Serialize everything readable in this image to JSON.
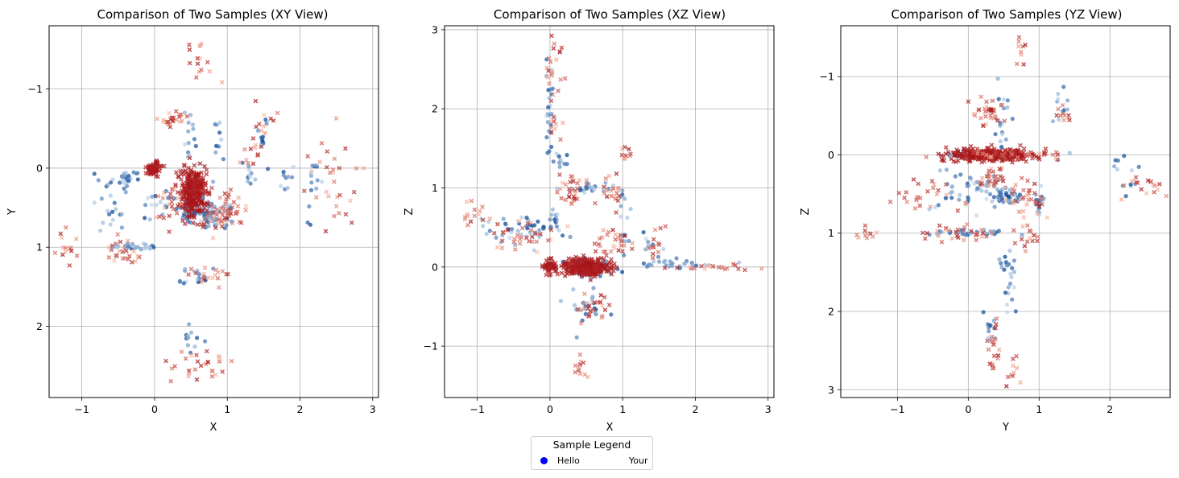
{
  "chart_data": [
    {
      "type": "scatter",
      "title": "Comparison of Two Samples (XY View)",
      "xlabel": "X",
      "ylabel": "Y",
      "xlim": [
        -1.45,
        3.08
      ],
      "ylim": [
        2.9,
        -1.8
      ],
      "y_inverted": true,
      "xticks": [
        -1,
        0,
        1,
        2,
        3
      ],
      "yticks": [
        -1,
        0,
        1,
        2
      ],
      "grid": true,
      "series": [
        {
          "name": "Hello",
          "color_map": "Blues",
          "marker": "o",
          "clusters": [
            {
              "cx": 0.5,
              "cy": 0.55,
              "sx": 0.06,
              "sy": 0.06,
              "n": 60
            },
            {
              "cx": 0.75,
              "cy": 0.6,
              "sx": 0.07,
              "sy": 0.08,
              "n": 45
            },
            {
              "cx": -0.4,
              "cy": 0.15,
              "sx": 0.12,
              "sy": 0.06,
              "n": 25
            },
            {
              "cx": -0.6,
              "cy": 0.5,
              "sx": 0.12,
              "sy": 0.15,
              "n": 20
            },
            {
              "cx": -0.3,
              "cy": 1.0,
              "sx": 0.2,
              "sy": 0.02,
              "n": 30
            },
            {
              "cx": 0.5,
              "cy": -0.3,
              "sx": 0.05,
              "sy": 0.25,
              "n": 15
            },
            {
              "cx": 0.9,
              "cy": -0.35,
              "sx": 0.05,
              "sy": 0.2,
              "n": 10
            },
            {
              "cx": 1.45,
              "cy": -0.4,
              "sx": 0.06,
              "sy": 0.1,
              "n": 12
            },
            {
              "cx": 1.3,
              "cy": 0.05,
              "sx": 0.05,
              "sy": 0.12,
              "n": 10
            },
            {
              "cx": 2.2,
              "cy": 0.15,
              "sx": 0.08,
              "sy": 0.25,
              "n": 14
            },
            {
              "cx": 1.8,
              "cy": 0.1,
              "sx": 0.1,
              "sy": 0.1,
              "n": 10
            },
            {
              "cx": 0.6,
              "cy": 1.35,
              "sx": 0.12,
              "sy": 0.06,
              "n": 18
            },
            {
              "cx": 0.5,
              "cy": 2.15,
              "sx": 0.07,
              "sy": 0.1,
              "n": 12
            },
            {
              "cx": 0.05,
              "cy": 0.45,
              "sx": 0.1,
              "sy": 0.1,
              "n": 15
            },
            {
              "cx": 1.0,
              "cy": 0.55,
              "sx": 0.06,
              "sy": 0.1,
              "n": 14
            }
          ]
        },
        {
          "name": "Your",
          "color_map": "Reds",
          "marker": "x",
          "clusters": [
            {
              "cx": 0.52,
              "cy": 0.3,
              "sx": 0.09,
              "sy": 0.16,
              "n": 320,
              "dense": true
            },
            {
              "cx": 0.0,
              "cy": 0.0,
              "sx": 0.05,
              "sy": 0.05,
              "n": 60,
              "dense": true
            },
            {
              "cx": 0.85,
              "cy": 0.6,
              "sx": 0.12,
              "sy": 0.12,
              "n": 35
            },
            {
              "cx": 1.05,
              "cy": 0.5,
              "sx": 0.1,
              "sy": 0.12,
              "n": 25
            },
            {
              "cx": 0.25,
              "cy": -0.6,
              "sx": 0.1,
              "sy": 0.06,
              "n": 25
            },
            {
              "cx": 0.2,
              "cy": 0.5,
              "sx": 0.1,
              "sy": 0.15,
              "n": 20
            },
            {
              "cx": -0.45,
              "cy": 1.05,
              "sx": 0.12,
              "sy": 0.08,
              "n": 25
            },
            {
              "cx": -1.2,
              "cy": 1.0,
              "sx": 0.08,
              "sy": 0.15,
              "n": 14
            },
            {
              "cx": 0.6,
              "cy": -1.35,
              "sx": 0.1,
              "sy": 0.15,
              "n": 14
            },
            {
              "cx": 1.5,
              "cy": -0.6,
              "sx": 0.1,
              "sy": 0.15,
              "n": 12
            },
            {
              "cx": 2.5,
              "cy": 0.2,
              "sx": 0.2,
              "sy": 0.3,
              "n": 30
            },
            {
              "cx": 0.65,
              "cy": 2.45,
              "sx": 0.22,
              "sy": 0.12,
              "n": 28
            },
            {
              "cx": 0.75,
              "cy": 1.35,
              "sx": 0.15,
              "sy": 0.07,
              "n": 18
            },
            {
              "cx": 1.35,
              "cy": -0.2,
              "sx": 0.08,
              "sy": 0.1,
              "n": 10
            }
          ]
        }
      ]
    },
    {
      "type": "scatter",
      "title": "Comparison of Two Samples (XZ View)",
      "xlabel": "X",
      "ylabel": "Z",
      "xlim": [
        -1.45,
        3.08
      ],
      "ylim": [
        -1.65,
        3.05
      ],
      "xticks": [
        -1,
        0,
        1,
        2,
        3
      ],
      "yticks": [
        -1,
        0,
        1,
        2,
        3
      ],
      "grid": true,
      "series": [
        {
          "name": "Hello",
          "color_map": "Blues",
          "marker": "o",
          "clusters": [
            {
              "cx": 0.55,
              "cy": 0.0,
              "sx": 0.15,
              "sy": 0.05,
              "n": 60
            },
            {
              "cx": 0.55,
              "cy": 1.0,
              "sx": 0.12,
              "sy": 0.03,
              "n": 25
            },
            {
              "cx": 0.0,
              "cy": 1.95,
              "sx": 0.03,
              "sy": 0.35,
              "n": 25
            },
            {
              "cx": 0.15,
              "cy": 1.35,
              "sx": 0.1,
              "sy": 0.05,
              "n": 10
            },
            {
              "cx": -0.3,
              "cy": 0.5,
              "sx": 0.3,
              "sy": 0.1,
              "n": 45
            },
            {
              "cx": 0.5,
              "cy": -0.5,
              "sx": 0.15,
              "sy": 0.15,
              "n": 25
            },
            {
              "cx": 1.0,
              "cy": 0.55,
              "sx": 0.04,
              "sy": 0.25,
              "n": 15
            },
            {
              "cx": 1.7,
              "cy": 0.03,
              "sx": 0.3,
              "sy": 0.03,
              "n": 30
            },
            {
              "cx": 1.4,
              "cy": 0.3,
              "sx": 0.06,
              "sy": 0.1,
              "n": 10
            },
            {
              "cx": 0.1,
              "cy": 0.7,
              "sx": 0.05,
              "sy": 0.2,
              "n": 10
            }
          ]
        },
        {
          "name": "Your",
          "color_map": "Reds",
          "marker": "x",
          "clusters": [
            {
              "cx": 0.48,
              "cy": 0.0,
              "sx": 0.15,
              "sy": 0.05,
              "n": 320,
              "dense": true
            },
            {
              "cx": 0.0,
              "cy": 0.0,
              "sx": 0.05,
              "sy": 0.05,
              "n": 60,
              "dense": true
            },
            {
              "cx": 0.05,
              "cy": 2.5,
              "sx": 0.06,
              "sy": 0.25,
              "n": 20
            },
            {
              "cx": 0.3,
              "cy": 0.95,
              "sx": 0.1,
              "sy": 0.1,
              "n": 30
            },
            {
              "cx": 0.85,
              "cy": 0.95,
              "sx": 0.1,
              "sy": 0.1,
              "n": 20
            },
            {
              "cx": -0.4,
              "cy": 0.4,
              "sx": 0.25,
              "sy": 0.1,
              "n": 35
            },
            {
              "cx": -1.1,
              "cy": 0.7,
              "sx": 0.1,
              "sy": 0.1,
              "n": 14
            },
            {
              "cx": 0.55,
              "cy": -0.5,
              "sx": 0.12,
              "sy": 0.08,
              "n": 25
            },
            {
              "cx": 0.9,
              "cy": 0.3,
              "sx": 0.15,
              "sy": 0.1,
              "n": 30
            },
            {
              "cx": 1.05,
              "cy": 1.45,
              "sx": 0.06,
              "sy": 0.1,
              "n": 10
            },
            {
              "cx": 0.05,
              "cy": 1.85,
              "sx": 0.06,
              "sy": 0.1,
              "n": 10
            },
            {
              "cx": 2.3,
              "cy": 0.0,
              "sx": 0.35,
              "sy": 0.02,
              "n": 20
            },
            {
              "cx": 1.45,
              "cy": 0.2,
              "sx": 0.08,
              "sy": 0.15,
              "n": 12
            },
            {
              "cx": 0.4,
              "cy": -1.3,
              "sx": 0.05,
              "sy": 0.1,
              "n": 12
            }
          ]
        }
      ]
    },
    {
      "type": "scatter",
      "title": "Comparison of Two Samples (YZ View)",
      "xlabel": "Y",
      "ylabel": "Z",
      "xlim": [
        -1.8,
        2.85
      ],
      "ylim": [
        3.1,
        -1.65
      ],
      "y_inverted": true,
      "xticks": [
        -1,
        0,
        1,
        2
      ],
      "yticks": [
        -1,
        0,
        1,
        2,
        3
      ],
      "grid": true,
      "series": [
        {
          "name": "Hello",
          "color_map": "Blues",
          "marker": "o",
          "clusters": [
            {
              "cx": 0.55,
              "cy": 0.55,
              "sx": 0.12,
              "sy": 0.05,
              "n": 40
            },
            {
              "cx": 1.0,
              "cy": 0.55,
              "sx": 0.03,
              "sy": 0.1,
              "n": 20
            },
            {
              "cx": 0.3,
              "cy": 0.4,
              "sx": 0.15,
              "sy": 0.06,
              "n": 25
            },
            {
              "cx": 0.6,
              "cy": 1.75,
              "sx": 0.05,
              "sy": 0.3,
              "n": 15
            },
            {
              "cx": 0.3,
              "cy": 2.15,
              "sx": 0.05,
              "sy": 0.12,
              "n": 10
            },
            {
              "cx": 0.5,
              "cy": -0.35,
              "sx": 0.06,
              "sy": 0.25,
              "n": 20
            },
            {
              "cx": 0.0,
              "cy": 0.0,
              "sx": 0.3,
              "sy": 0.02,
              "n": 30
            },
            {
              "cx": 0.0,
              "cy": 1.0,
              "sx": 0.35,
              "sy": 0.02,
              "n": 30
            },
            {
              "cx": -0.2,
              "cy": 0.5,
              "sx": 0.2,
              "sy": 0.15,
              "n": 25
            },
            {
              "cx": 1.3,
              "cy": -0.45,
              "sx": 0.06,
              "sy": 0.2,
              "n": 12
            },
            {
              "cx": 2.2,
              "cy": 0.2,
              "sx": 0.12,
              "sy": 0.12,
              "n": 12
            },
            {
              "cx": 0.5,
              "cy": 1.4,
              "sx": 0.1,
              "sy": 0.05,
              "n": 10
            }
          ]
        },
        {
          "name": "Your",
          "color_map": "Reds",
          "marker": "x",
          "clusters": [
            {
              "cx": 0.3,
              "cy": 0.0,
              "sx": 0.3,
              "sy": 0.04,
              "n": 320,
              "dense": true
            },
            {
              "cx": 0.3,
              "cy": -0.55,
              "sx": 0.12,
              "sy": 0.08,
              "n": 35
            },
            {
              "cx": 0.35,
              "cy": 0.3,
              "sx": 0.1,
              "sy": 0.06,
              "n": 30
            },
            {
              "cx": 0.85,
              "cy": 0.55,
              "sx": 0.15,
              "sy": 0.12,
              "n": 35
            },
            {
              "cx": 0.8,
              "cy": 1.05,
              "sx": 0.1,
              "sy": 0.08,
              "n": 15
            },
            {
              "cx": -0.1,
              "cy": 1.0,
              "sx": 0.3,
              "sy": 0.05,
              "n": 30
            },
            {
              "cx": -0.6,
              "cy": 0.5,
              "sx": 0.25,
              "sy": 0.12,
              "n": 25
            },
            {
              "cx": 0.35,
              "cy": 2.45,
              "sx": 0.05,
              "sy": 0.2,
              "n": 20
            },
            {
              "cx": 0.75,
              "cy": -1.3,
              "sx": 0.05,
              "sy": 0.12,
              "n": 10
            },
            {
              "cx": 0.6,
              "cy": 2.7,
              "sx": 0.05,
              "sy": 0.15,
              "n": 10
            },
            {
              "cx": 2.45,
              "cy": 0.4,
              "sx": 0.18,
              "sy": 0.08,
              "n": 18
            },
            {
              "cx": -1.4,
              "cy": 1.0,
              "sx": 0.15,
              "sy": 0.05,
              "n": 10
            },
            {
              "cx": 1.35,
              "cy": -0.5,
              "sx": 0.06,
              "sy": 0.08,
              "n": 10
            },
            {
              "cx": 0.6,
              "cy": 0.0,
              "sx": 0.4,
              "sy": 0.03,
              "n": 40
            }
          ]
        }
      ]
    }
  ],
  "legend": {
    "title": "Sample Legend",
    "entries": [
      {
        "label": "Hello",
        "color": "#0000ff"
      },
      {
        "label": "Your",
        "color": ""
      }
    ]
  }
}
